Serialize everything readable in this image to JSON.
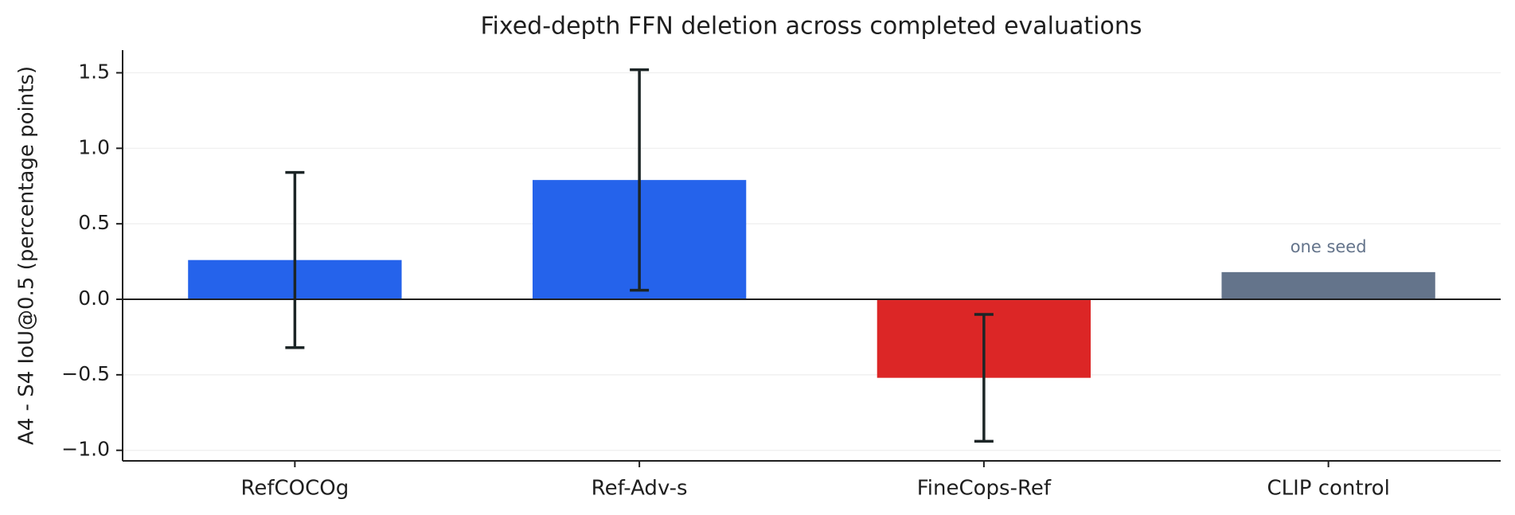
{
  "chart_data": {
    "type": "bar",
    "title": "Fixed-depth FFN deletion across completed evaluations",
    "y_label": "A4 - S4 IoU@0.5 (percentage points)",
    "categories": [
      "RefCOCOg",
      "Ref-Adv-s",
      "FineCops-Ref",
      "CLIP control"
    ],
    "values": [
      0.26,
      0.79,
      -0.52,
      0.18
    ],
    "errors": [
      0.58,
      0.73,
      0.42,
      null
    ],
    "colors": [
      "#2563eb",
      "#2563eb",
      "#dc2626",
      "#64748b"
    ],
    "annotation": "one seed",
    "ylim": [
      -1.07,
      1.65
    ],
    "yticks": [
      {
        "value": -1,
        "label": "−1.0"
      },
      {
        "value": -0.5,
        "label": "−0.5"
      },
      {
        "value": 0,
        "label": "0.0"
      },
      0.5,
      {
        "value": 1,
        "label": "1.0"
      },
      1.5
    ],
    "grid": true
  }
}
